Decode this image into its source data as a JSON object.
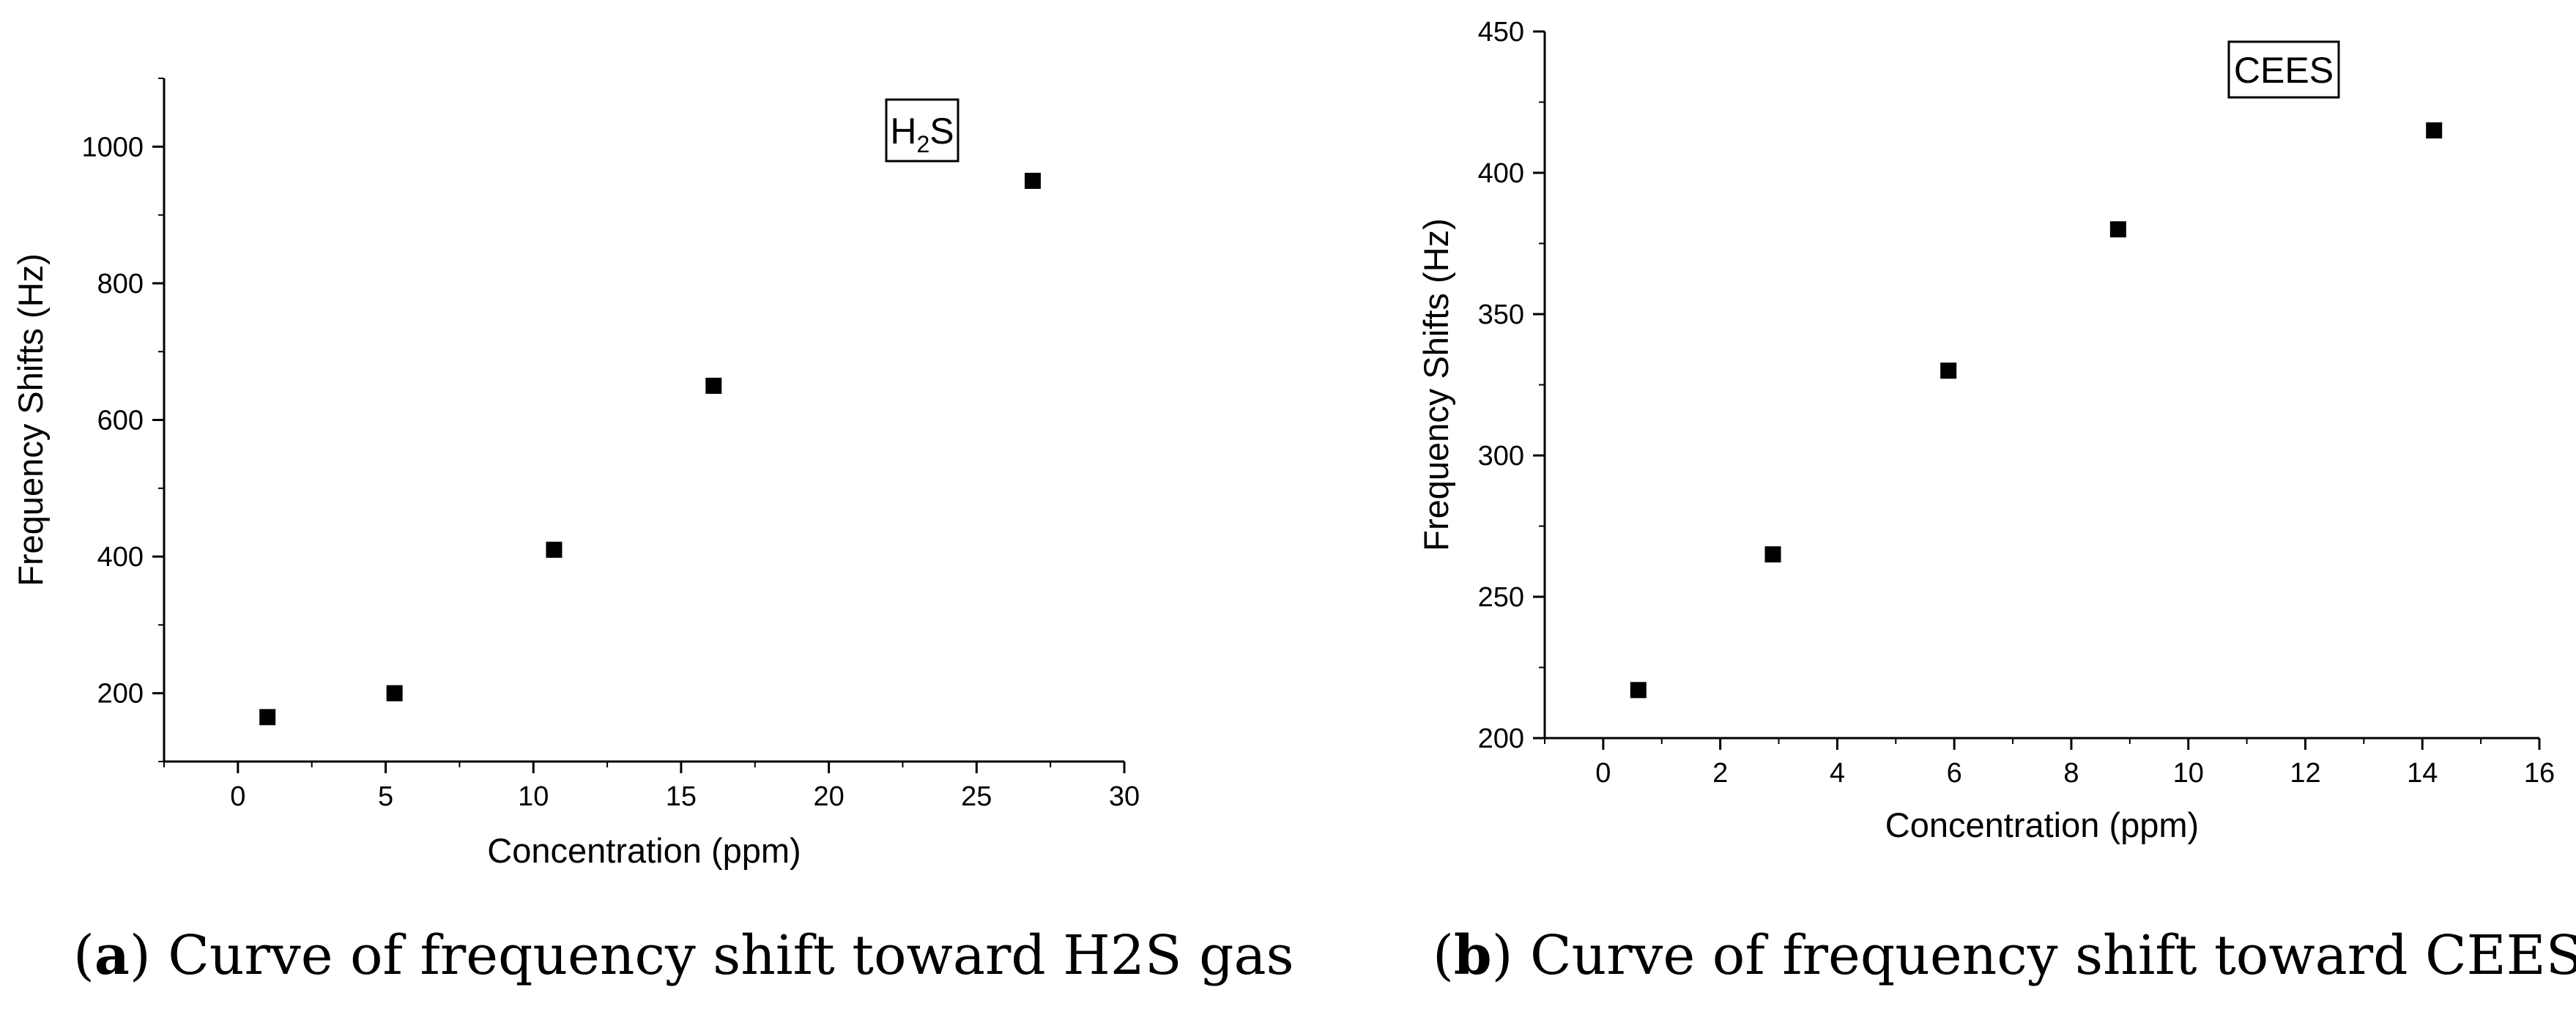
{
  "chart_data": [
    {
      "type": "scatter",
      "legend_label": {
        "main": "H",
        "subscript": "2",
        "suffix": "S"
      },
      "legend_position": "top-right",
      "xlabel": "Concentration (ppm)",
      "ylabel": "Frequency Shifts (Hz)",
      "xlim": [
        -2.5,
        30
      ],
      "ylim": [
        100,
        1100
      ],
      "x_ticks": [
        0,
        5,
        10,
        15,
        20,
        25,
        30
      ],
      "y_ticks": [
        200,
        400,
        600,
        800,
        1000
      ],
      "grid": false,
      "x": [
        1.0,
        5.3,
        10.7,
        16.1,
        26.9
      ],
      "y": [
        165,
        200,
        410,
        650,
        950
      ],
      "caption": {
        "letter": "a",
        "text": "Curve of frequency shift toward H2S gas"
      }
    },
    {
      "type": "scatter",
      "legend_label": {
        "main": "CEES",
        "subscript": "",
        "suffix": ""
      },
      "legend_position": "top-right",
      "xlabel": "Concentration (ppm)",
      "ylabel": "Frequency Shifts (Hz)",
      "xlim": [
        -1,
        16
      ],
      "ylim": [
        200,
        450
      ],
      "x_ticks": [
        0,
        2,
        4,
        6,
        8,
        10,
        12,
        14,
        16
      ],
      "y_ticks": [
        200,
        250,
        300,
        350,
        400,
        450
      ],
      "grid": false,
      "x": [
        0.6,
        2.9,
        5.9,
        8.8,
        14.2
      ],
      "y": [
        217,
        265,
        330,
        380,
        415
      ],
      "caption": {
        "letter": "b",
        "text": "Curve of frequency shift toward CEES gas"
      }
    }
  ]
}
